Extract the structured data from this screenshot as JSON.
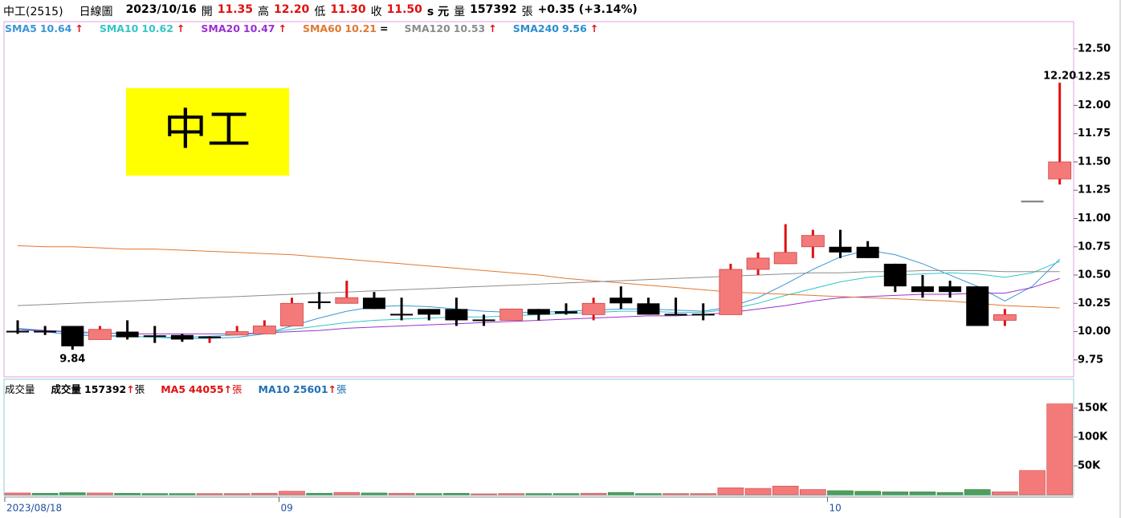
{
  "header": {
    "name": "中工(2515)",
    "period": "日線圖",
    "date": "2023/10/16",
    "open_label": "開",
    "open": "11.35",
    "high_label": "高",
    "high": "12.20",
    "low_label": "低",
    "low": "11.30",
    "close_label": "收",
    "close": "11.50",
    "unit": "s 元",
    "volume_label": "量",
    "volume": "157392",
    "volume_unit": "張",
    "change": "+0.35 (+3.14%)"
  },
  "badge": "中工",
  "chart_data": [
    {
      "type": "candlestick",
      "open": [
        10.0,
        10.0,
        10.05,
        9.93,
        10.0,
        9.96,
        9.97,
        9.94,
        9.97,
        9.98,
        10.05,
        10.26,
        10.25,
        10.3,
        10.15,
        10.2,
        10.2,
        10.1,
        10.1,
        10.2,
        10.18,
        10.15,
        10.3,
        10.25,
        10.15,
        10.15,
        10.15,
        10.55,
        10.6,
        10.75,
        10.75,
        10.75,
        10.6,
        10.4,
        10.4,
        10.4,
        10.1,
        11.15,
        11.35
      ],
      "high": [
        10.1,
        10.05,
        10.05,
        10.05,
        10.1,
        10.05,
        9.98,
        9.96,
        10.05,
        10.1,
        10.3,
        10.35,
        10.45,
        10.35,
        10.3,
        10.2,
        10.3,
        10.15,
        10.2,
        10.2,
        10.25,
        10.3,
        10.4,
        10.3,
        10.3,
        10.25,
        10.6,
        10.7,
        10.95,
        10.9,
        10.9,
        10.8,
        10.6,
        10.5,
        10.45,
        10.4,
        10.2,
        11.15,
        12.2
      ],
      "low": [
        9.98,
        9.97,
        9.84,
        9.93,
        9.93,
        9.9,
        9.91,
        9.9,
        9.97,
        9.98,
        10.05,
        10.2,
        10.25,
        10.2,
        10.1,
        10.1,
        10.05,
        10.05,
        10.1,
        10.1,
        10.15,
        10.1,
        10.2,
        10.15,
        10.15,
        10.1,
        10.15,
        10.5,
        10.6,
        10.65,
        10.65,
        10.65,
        10.35,
        10.3,
        10.3,
        10.05,
        10.05,
        11.15,
        11.3
      ],
      "close": [
        10.0,
        9.99,
        9.87,
        10.02,
        9.95,
        9.95,
        9.93,
        9.95,
        10.0,
        10.05,
        10.25,
        10.25,
        10.3,
        10.2,
        10.15,
        10.15,
        10.1,
        10.1,
        10.2,
        10.15,
        10.16,
        10.25,
        10.25,
        10.15,
        10.15,
        10.15,
        10.55,
        10.65,
        10.7,
        10.85,
        10.7,
        10.65,
        10.4,
        10.35,
        10.35,
        10.05,
        10.15,
        11.15,
        11.5
      ],
      "series": [
        {
          "name": "SMA5",
          "color": "#3a96d8",
          "value_label": "10.64",
          "trend": "↑",
          "values": [
            10.02,
            10.0,
            9.97,
            9.96,
            9.96,
            9.95,
            9.94,
            9.94,
            9.95,
            9.98,
            10.05,
            10.12,
            10.18,
            10.22,
            10.23,
            10.22,
            10.2,
            10.18,
            10.17,
            10.17,
            10.18,
            10.19,
            10.2,
            10.2,
            10.19,
            10.18,
            10.22,
            10.3,
            10.42,
            10.55,
            10.66,
            10.72,
            10.68,
            10.6,
            10.5,
            10.4,
            10.27,
            10.4,
            10.64
          ]
        },
        {
          "name": "SMA10",
          "color": "#33c6c6",
          "value_label": "10.62",
          "trend": "↑",
          "values": [
            10.03,
            10.01,
            9.99,
            9.97,
            9.96,
            9.95,
            9.95,
            9.96,
            9.97,
            9.99,
            10.02,
            10.05,
            10.08,
            10.1,
            10.11,
            10.12,
            10.13,
            10.13,
            10.14,
            10.15,
            10.16,
            10.17,
            10.18,
            10.18,
            10.17,
            10.17,
            10.2,
            10.25,
            10.32,
            10.38,
            10.44,
            10.48,
            10.5,
            10.51,
            10.52,
            10.51,
            10.48,
            10.52,
            10.62
          ]
        },
        {
          "name": "SMA20",
          "color": "#9a30d0",
          "value_label": "10.47",
          "trend": "↑",
          "values": [
            10.02,
            10.01,
            10.0,
            9.99,
            9.98,
            9.98,
            9.98,
            9.98,
            9.98,
            9.99,
            10.0,
            10.01,
            10.03,
            10.04,
            10.05,
            10.06,
            10.07,
            10.08,
            10.09,
            10.1,
            10.11,
            10.12,
            10.13,
            10.14,
            10.14,
            10.15,
            10.17,
            10.2,
            10.23,
            10.27,
            10.3,
            10.31,
            10.32,
            10.33,
            10.33,
            10.34,
            10.34,
            10.39,
            10.47
          ]
        },
        {
          "name": "SMA60",
          "color": "#e07830",
          "value_label": "10.21",
          "trend": "=",
          "values": [
            10.76,
            10.75,
            10.75,
            10.74,
            10.73,
            10.73,
            10.72,
            10.71,
            10.7,
            10.69,
            10.68,
            10.66,
            10.64,
            10.62,
            10.6,
            10.58,
            10.56,
            10.54,
            10.52,
            10.5,
            10.47,
            10.45,
            10.43,
            10.41,
            10.39,
            10.37,
            10.35,
            10.34,
            10.33,
            10.32,
            10.31,
            10.3,
            10.29,
            10.28,
            10.27,
            10.25,
            10.23,
            10.22,
            10.21
          ]
        },
        {
          "name": "SMA120",
          "color": "#8c8c8c",
          "value_label": "10.53",
          "trend": "↑",
          "values": [
            10.23,
            10.24,
            10.25,
            10.26,
            10.27,
            10.28,
            10.29,
            10.3,
            10.31,
            10.32,
            10.33,
            10.34,
            10.35,
            10.36,
            10.37,
            10.38,
            10.39,
            10.4,
            10.41,
            10.42,
            10.43,
            10.44,
            10.45,
            10.46,
            10.47,
            10.48,
            10.49,
            10.5,
            10.51,
            10.52,
            10.52,
            10.53,
            10.53,
            10.54,
            10.54,
            10.54,
            10.53,
            10.53,
            10.53
          ]
        },
        {
          "name": "SMA240",
          "color": "#2a8fcf",
          "value_label": "9.56",
          "trend": "↑"
        }
      ],
      "up_color": "#f47a7a",
      "down_color": "#000000",
      "wick_up_color": "#e01010",
      "ylim": [
        9.6,
        12.74
      ],
      "yticks": [
        9.75,
        {
          "value": 10,
          "label": "10.00"
        },
        10.25,
        {
          "value": 10.5,
          "label": "10.50"
        },
        10.75,
        {
          "value": 11,
          "label": "11.00"
        },
        11.25,
        {
          "value": 11.5,
          "label": "11.50"
        },
        11.75,
        {
          "value": 12,
          "label": "12.00"
        },
        12.25,
        {
          "value": 12.5,
          "label": "12.50"
        }
      ],
      "max_label": "12.20",
      "min_label": "9.84"
    },
    {
      "type": "bar",
      "title": "成交量",
      "categories": [
        "2023/08/18",
        null,
        null,
        null,
        null,
        null,
        null,
        null,
        null,
        null,
        "09",
        null,
        null,
        null,
        null,
        null,
        null,
        null,
        null,
        null,
        null,
        null,
        null,
        null,
        null,
        null,
        null,
        null,
        null,
        null,
        "10",
        null,
        null,
        null,
        null,
        null,
        null,
        null,
        null
      ],
      "values": [
        3000,
        2500,
        3500,
        3000,
        2500,
        2000,
        2000,
        2000,
        2000,
        2500,
        6000,
        2500,
        4000,
        3000,
        2500,
        2000,
        2500,
        1500,
        2000,
        2000,
        2000,
        2500,
        4000,
        2000,
        2000,
        2000,
        12000,
        11000,
        15000,
        9000,
        7000,
        6000,
        5000,
        5000,
        4000,
        9000,
        5000,
        42000,
        157392
      ],
      "legend": [
        {
          "name": "成交量",
          "value_label": "157392",
          "trend": "↑",
          "unit": "張",
          "color": "#000000"
        },
        {
          "name": "MA5",
          "value_label": "44055",
          "trend": "↑",
          "unit": "張",
          "color": "#e01010"
        },
        {
          "name": "MA10",
          "value_label": "25601",
          "trend": "↑",
          "unit": "張",
          "color": "#1f6fb5"
        }
      ],
      "up_color": "#f47a7a",
      "down_color": "#4f9f5a",
      "ylim": [
        0,
        200000
      ],
      "yticks": [
        {
          "value": 50000,
          "label": "50K"
        },
        {
          "value": 100000,
          "label": "100K"
        },
        {
          "value": 150000,
          "label": "150K"
        }
      ]
    }
  ]
}
